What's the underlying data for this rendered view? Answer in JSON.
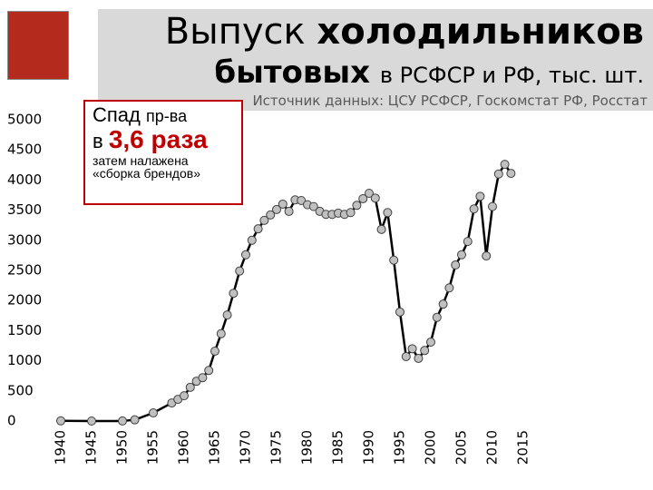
{
  "chart_data": {
    "type": "line",
    "title": {
      "line1": [
        "Выпуск",
        "холодильников"
      ],
      "line2": [
        "бытовых",
        "в РСФСР и РФ, тыс. шт."
      ]
    },
    "subtitle": "Источник данных: ЦСУ РСФСР, Госкомстат РФ, Росстат",
    "annotation": {
      "line1": [
        "Спад",
        "пр-ва"
      ],
      "line2": [
        "в",
        "3,6 раза"
      ],
      "line3": "затем налажена",
      "line4": "«сборка брендов»"
    },
    "x": [
      1940,
      1945,
      1950,
      1952,
      1955,
      1958,
      1959,
      1960,
      1961,
      1962,
      1963,
      1964,
      1965,
      1966,
      1967,
      1968,
      1969,
      1970,
      1971,
      1972,
      1973,
      1974,
      1975,
      1976,
      1977,
      1978,
      1979,
      1980,
      1981,
      1982,
      1983,
      1984,
      1985,
      1986,
      1987,
      1988,
      1989,
      1990,
      1991,
      1992,
      1993,
      1994,
      1995,
      1996,
      1997,
      1998,
      1999,
      2000,
      2001,
      2002,
      2003,
      2004,
      2005,
      2006,
      2007,
      2008,
      2009,
      2010,
      2011,
      2012,
      2013
    ],
    "values": [
      3,
      0,
      1,
      20,
      135,
      300,
      360,
      420,
      560,
      660,
      720,
      840,
      1160,
      1450,
      1760,
      2120,
      2490,
      2760,
      3000,
      3190,
      3330,
      3420,
      3510,
      3600,
      3480,
      3670,
      3660,
      3590,
      3560,
      3480,
      3430,
      3430,
      3450,
      3430,
      3460,
      3580,
      3690,
      3780,
      3700,
      3180,
      3460,
      2670,
      1810,
      1070,
      1200,
      1040,
      1170,
      1310,
      1720,
      1940,
      2210,
      2590,
      2760,
      2980,
      3520,
      3730,
      2740,
      3560,
      4100,
      4260,
      4110
    ],
    "color": "#000000",
    "marker_color": "#c0c0c0",
    "xlim": [
      1940,
      2015
    ],
    "xticks": [
      1940,
      1945,
      1950,
      1955,
      1960,
      1965,
      1970,
      1975,
      1980,
      1985,
      1990,
      1995,
      2000,
      2005,
      2010,
      2015
    ],
    "ylim": [
      0,
      5000
    ],
    "yticks": [
      0,
      500,
      1000,
      1500,
      2000,
      2500,
      3000,
      3500,
      4000,
      4500,
      5000
    ]
  }
}
